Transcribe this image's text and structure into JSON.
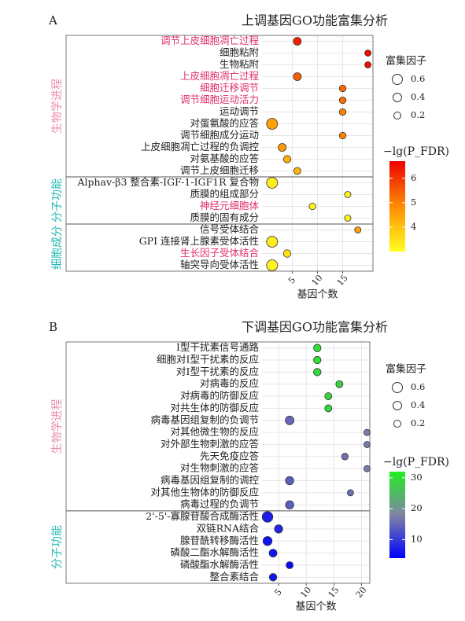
{
  "chart_data": [
    {
      "type": "bubble",
      "panel_label": "A",
      "title": "上调基因GO功能富集分析",
      "x_label": "基因个数",
      "xlim": [
        -1,
        21
      ],
      "xticks": [
        5,
        10,
        15
      ],
      "grid": true,
      "size_legend_title": "富集因子",
      "size_legend": [
        0.6,
        0.4,
        0.2
      ],
      "color_legend_title": "−lg(P_FDR)",
      "clim": [
        3,
        6.7
      ],
      "cticks": [
        4,
        5,
        6
      ],
      "colors": [
        "#ffff20",
        "#ff8c00",
        "#ee0000"
      ],
      "highlight_color": "#e0306a",
      "groups": [
        {
          "name": "生物学进程",
          "color": "#e88aae",
          "categories": [
            "调节上皮细胞凋亡过程",
            "细胞粘附",
            "生物粘附",
            "上皮细胞凋亡过程",
            "细胞迁移调节",
            "调节细胞运动活力",
            "运动调节",
            "对蛋氨酸的应答",
            "调节细胞成分运动",
            "上皮细胞凋亡过程的负调控",
            "对氨基酸的应答",
            "调节上皮细胞迁移"
          ],
          "values": [
            6,
            20,
            20,
            6,
            15,
            15,
            15,
            1,
            15,
            3,
            4,
            6
          ],
          "fdr": [
            6.3,
            6.5,
            6.5,
            5.5,
            5.3,
            5.3,
            5.0,
            4.5,
            5.0,
            4.6,
            4.3,
            4.2
          ],
          "enrichment": [
            0.3,
            0.1,
            0.1,
            0.3,
            0.15,
            0.15,
            0.15,
            0.7,
            0.15,
            0.3,
            0.25,
            0.2
          ],
          "highlight": [
            true,
            false,
            false,
            true,
            true,
            true,
            false,
            false,
            false,
            false,
            false,
            false
          ]
        },
        {
          "name": "分子功能",
          "color": "#22b8b0",
          "categories": [
            "Alphav-β3 整合素-IGF-1-IGF1R 复合物",
            "质膜的组成部分",
            "神经元细胞体",
            "质膜的固有成分"
          ],
          "values": [
            1,
            16,
            9,
            16
          ],
          "fdr": [
            3.3,
            3.2,
            3.2,
            3.2
          ],
          "enrichment": [
            0.7,
            0.1,
            0.15,
            0.1
          ],
          "highlight": [
            false,
            false,
            true,
            false
          ]
        },
        {
          "name": "细胞成分",
          "color": "#22b8b0",
          "categories": [
            "信号受体结合",
            "GPI 连接肾上腺素受体活性",
            "生长因子受体结合",
            "轴突导向受体活性"
          ],
          "values": [
            18,
            1,
            4,
            1
          ],
          "fdr": [
            4.5,
            3.3,
            3.5,
            3.2
          ],
          "enrichment": [
            0.1,
            0.7,
            0.25,
            0.7
          ],
          "highlight": [
            false,
            false,
            true,
            false
          ]
        }
      ]
    },
    {
      "type": "bubble",
      "panel_label": "B",
      "title": "下调基因GO功能富集分析",
      "x_label": "基因个数",
      "xlim": [
        2,
        21.5
      ],
      "xticks": [
        5,
        10,
        15,
        20
      ],
      "grid": true,
      "size_legend_title": "富集因子",
      "size_legend": [
        0.6,
        0.4,
        0.2
      ],
      "color_legend_title": "−lg(P_FDR)",
      "clim": [
        4,
        32
      ],
      "cticks": [
        10,
        20,
        30
      ],
      "colors": [
        "#0000ff",
        "#8084a4",
        "#22ee22"
      ],
      "highlight_color": "#e0306a",
      "groups": [
        {
          "name": "生物学进程",
          "color": "#e88aae",
          "categories": [
            "I型干扰素信号通路",
            "细胞对I型干扰素的反应",
            "对I型干扰素的反应",
            "对病毒的反应",
            "对病毒的防御反应",
            "对共生体的防御反应",
            "病毒基因组复制的负调节",
            "对其他微生物的反应",
            "对外部生物刺激的应答",
            "先天免疫应答",
            "对生物刺激的应答",
            "病毒基因组复制的调控",
            "对其他生物体的防御反应",
            "病毒过程的负调节"
          ],
          "values": [
            12,
            12,
            12,
            16,
            14,
            14,
            7,
            21,
            21,
            17,
            21,
            7,
            18,
            7
          ],
          "fdr": [
            30,
            30,
            29,
            28,
            29,
            29,
            15,
            17,
            17,
            16,
            17,
            14,
            16,
            14
          ],
          "enrichment": [
            0.25,
            0.25,
            0.25,
            0.2,
            0.2,
            0.2,
            0.4,
            0.1,
            0.1,
            0.15,
            0.1,
            0.35,
            0.1,
            0.35
          ],
          "highlight": [
            false,
            false,
            false,
            false,
            false,
            false,
            false,
            false,
            false,
            false,
            false,
            false,
            false,
            false
          ]
        },
        {
          "name": "分子功能",
          "color": "#22b8b0",
          "categories": [
            "2'-5'-寡腺苷酸合成酶活性",
            "双链RNA结合",
            "腺苷酰转移酶活性",
            "磷酸二酯水解酶活性",
            "磷酸酯水解酶活性",
            "整合素结合"
          ],
          "values": [
            3,
            5,
            3,
            4,
            7,
            4
          ],
          "fdr": [
            7,
            8,
            6,
            6,
            5,
            6
          ],
          "enrichment": [
            0.65,
            0.35,
            0.45,
            0.3,
            0.2,
            0.25
          ],
          "highlight": [
            false,
            false,
            false,
            false,
            false,
            false
          ]
        }
      ]
    }
  ]
}
